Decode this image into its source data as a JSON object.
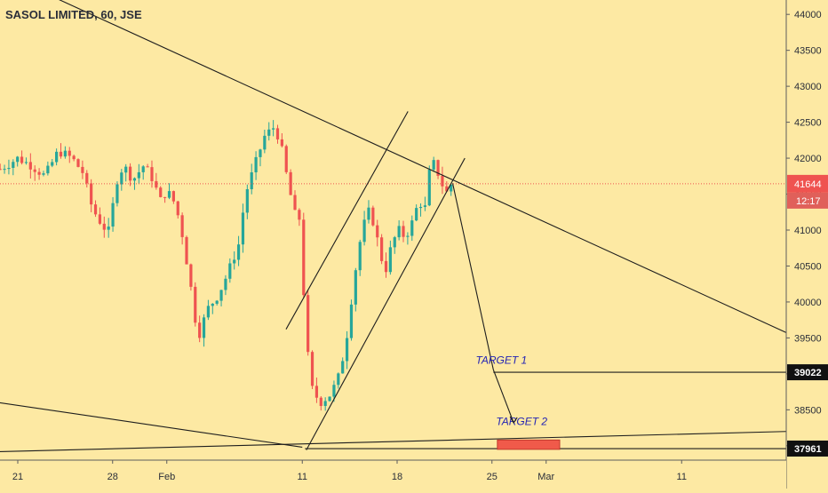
{
  "chart_data": {
    "type": "candlestick",
    "title": "SASOL LIMITED, 60, JSE",
    "ylim": [
      37800,
      44200
    ],
    "y_ticks": [
      38000,
      38500,
      39000,
      39500,
      40000,
      40500,
      41000,
      41500,
      42000,
      42500,
      43000,
      43500,
      44000
    ],
    "y_tick_labels": [
      "38000",
      "38500",
      "39000",
      "39500",
      "40000",
      "40500",
      "41000",
      "41500",
      "42000",
      "42500",
      "43000",
      "43500",
      "44000"
    ],
    "x_ticks": [
      {
        "label": "21",
        "day": 0
      },
      {
        "label": "28",
        "day": 7
      },
      {
        "label": "Feb",
        "day": 11
      },
      {
        "label": "11",
        "day": 21
      },
      {
        "label": "18",
        "day": 28
      },
      {
        "label": "25",
        "day": 35
      },
      {
        "label": "Mar",
        "day": 39
      },
      {
        "label": "11",
        "day": 49
      }
    ],
    "current_price": {
      "value": 41644,
      "label": "41644",
      "countdown": "12:17",
      "color": "#ef5350"
    },
    "price_markers": [
      {
        "value": 39022,
        "label": "39022"
      },
      {
        "value": 37961,
        "label": "37961"
      }
    ],
    "annotations": [
      {
        "text": "TARGET 1",
        "day": 33.8,
        "value": 39140
      },
      {
        "text": "TARGET 2",
        "day": 35.3,
        "value": 38290
      }
    ],
    "target_box": {
      "day_start": 35.4,
      "day_end": 40.0,
      "value_low": 37950,
      "value_high": 38080,
      "color": "#f05a4a"
    },
    "trendlines": [
      {
        "from": [
          -5,
          44900
        ],
        "to": [
          57,
          39550
        ]
      },
      {
        "from": [
          -5,
          38700
        ],
        "to": [
          21,
          37980
        ]
      },
      {
        "from": [
          -5,
          37900
        ],
        "to": [
          57,
          38200
        ]
      },
      {
        "from": [
          21.2,
          37960
        ],
        "to": [
          57,
          37960
        ]
      },
      {
        "from": [
          19.8,
          39620
        ],
        "to": [
          28.8,
          42650
        ]
      },
      {
        "from": [
          21.3,
          37940
        ],
        "to": [
          33.0,
          42000
        ]
      },
      {
        "from": [
          32.1,
          41650
        ],
        "to": [
          35.1,
          39060
        ]
      },
      {
        "from": [
          35.1,
          39060
        ],
        "to": [
          36.6,
          38320
        ]
      },
      {
        "from": [
          35.1,
          39022
        ],
        "to": [
          57,
          39022
        ]
      }
    ],
    "ohlc_knots": [
      [
        -1.3,
        41850
      ],
      [
        0,
        42000
      ],
      [
        1,
        41900
      ],
      [
        2,
        41750
      ],
      [
        3,
        42100
      ],
      [
        4,
        42000
      ],
      [
        4.8,
        41800
      ],
      [
        5.5,
        41300
      ],
      [
        6.3,
        41050
      ],
      [
        6.9,
        40950
      ],
      [
        7.1,
        41600
      ],
      [
        7.8,
        41900
      ],
      [
        8.5,
        41700
      ],
      [
        9.3,
        41900
      ],
      [
        10.0,
        41700
      ],
      [
        10.5,
        41400
      ],
      [
        11.0,
        41550
      ],
      [
        11.5,
        41400
      ],
      [
        12.0,
        41100
      ],
      [
        12.7,
        40300
      ],
      [
        13.3,
        39500
      ],
      [
        14.0,
        39900
      ],
      [
        14.8,
        40100
      ],
      [
        15.5,
        40400
      ],
      [
        16.3,
        40800
      ],
      [
        16.8,
        41500
      ],
      [
        17.5,
        41900
      ],
      [
        18.2,
        42300
      ],
      [
        19.0,
        42450
      ],
      [
        19.5,
        42100
      ],
      [
        20.0,
        41600
      ],
      [
        20.6,
        41100
      ],
      [
        20.9,
        41200
      ],
      [
        21.2,
        39600
      ],
      [
        21.7,
        38800
      ],
      [
        22.3,
        38600
      ],
      [
        23.0,
        38700
      ],
      [
        23.6,
        38900
      ],
      [
        24.2,
        39400
      ],
      [
        24.8,
        40300
      ],
      [
        25.4,
        41000
      ],
      [
        26.0,
        41300
      ],
      [
        26.5,
        40900
      ],
      [
        27.1,
        40400
      ],
      [
        27.6,
        40800
      ],
      [
        28.1,
        41000
      ],
      [
        28.6,
        40900
      ],
      [
        29.1,
        41100
      ],
      [
        29.6,
        41400
      ],
      [
        30.1,
        41300
      ],
      [
        30.5,
        42000
      ],
      [
        31.0,
        41800
      ],
      [
        31.6,
        41500
      ],
      [
        32.0,
        41644
      ]
    ]
  }
}
